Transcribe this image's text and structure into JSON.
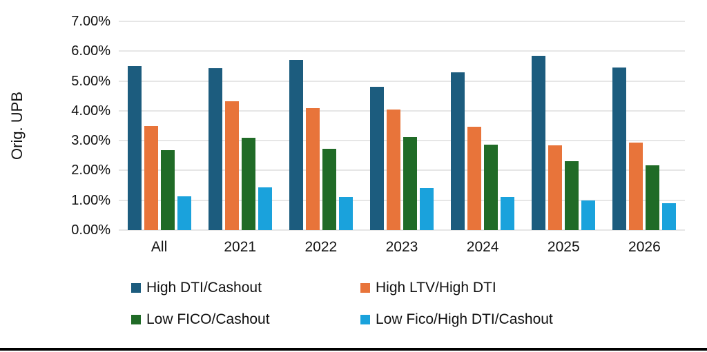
{
  "chart_data": {
    "type": "bar",
    "title": "",
    "xlabel": "",
    "ylabel": "Orig. UPB",
    "ylim": [
      0,
      7
    ],
    "y_ticks": [
      "0.00%",
      "1.00%",
      "2.00%",
      "3.00%",
      "4.00%",
      "5.00%",
      "6.00%",
      "7.00%"
    ],
    "grid": true,
    "legend_position": "bottom",
    "categories": [
      "All",
      "2021",
      "2022",
      "2023",
      "2024",
      "2025",
      "2026"
    ],
    "series": [
      {
        "name": "High DTI/Cashout",
        "color": "#1c5c7e",
        "values": [
          5.5,
          5.43,
          5.7,
          4.81,
          5.29,
          5.85,
          5.46
        ]
      },
      {
        "name": "High LTV/High DTI",
        "color": "#e8743a",
        "values": [
          3.5,
          4.31,
          4.08,
          4.05,
          3.47,
          2.84,
          2.94
        ]
      },
      {
        "name": "Low FICO/Cashout",
        "color": "#206b27",
        "values": [
          2.68,
          3.1,
          2.73,
          3.11,
          2.87,
          2.32,
          2.18
        ]
      },
      {
        "name": "Low Fico/High DTI/Cashout",
        "color": "#1aa2dc",
        "values": [
          1.13,
          1.44,
          1.11,
          1.42,
          1.11,
          1.0,
          0.89
        ]
      }
    ]
  }
}
